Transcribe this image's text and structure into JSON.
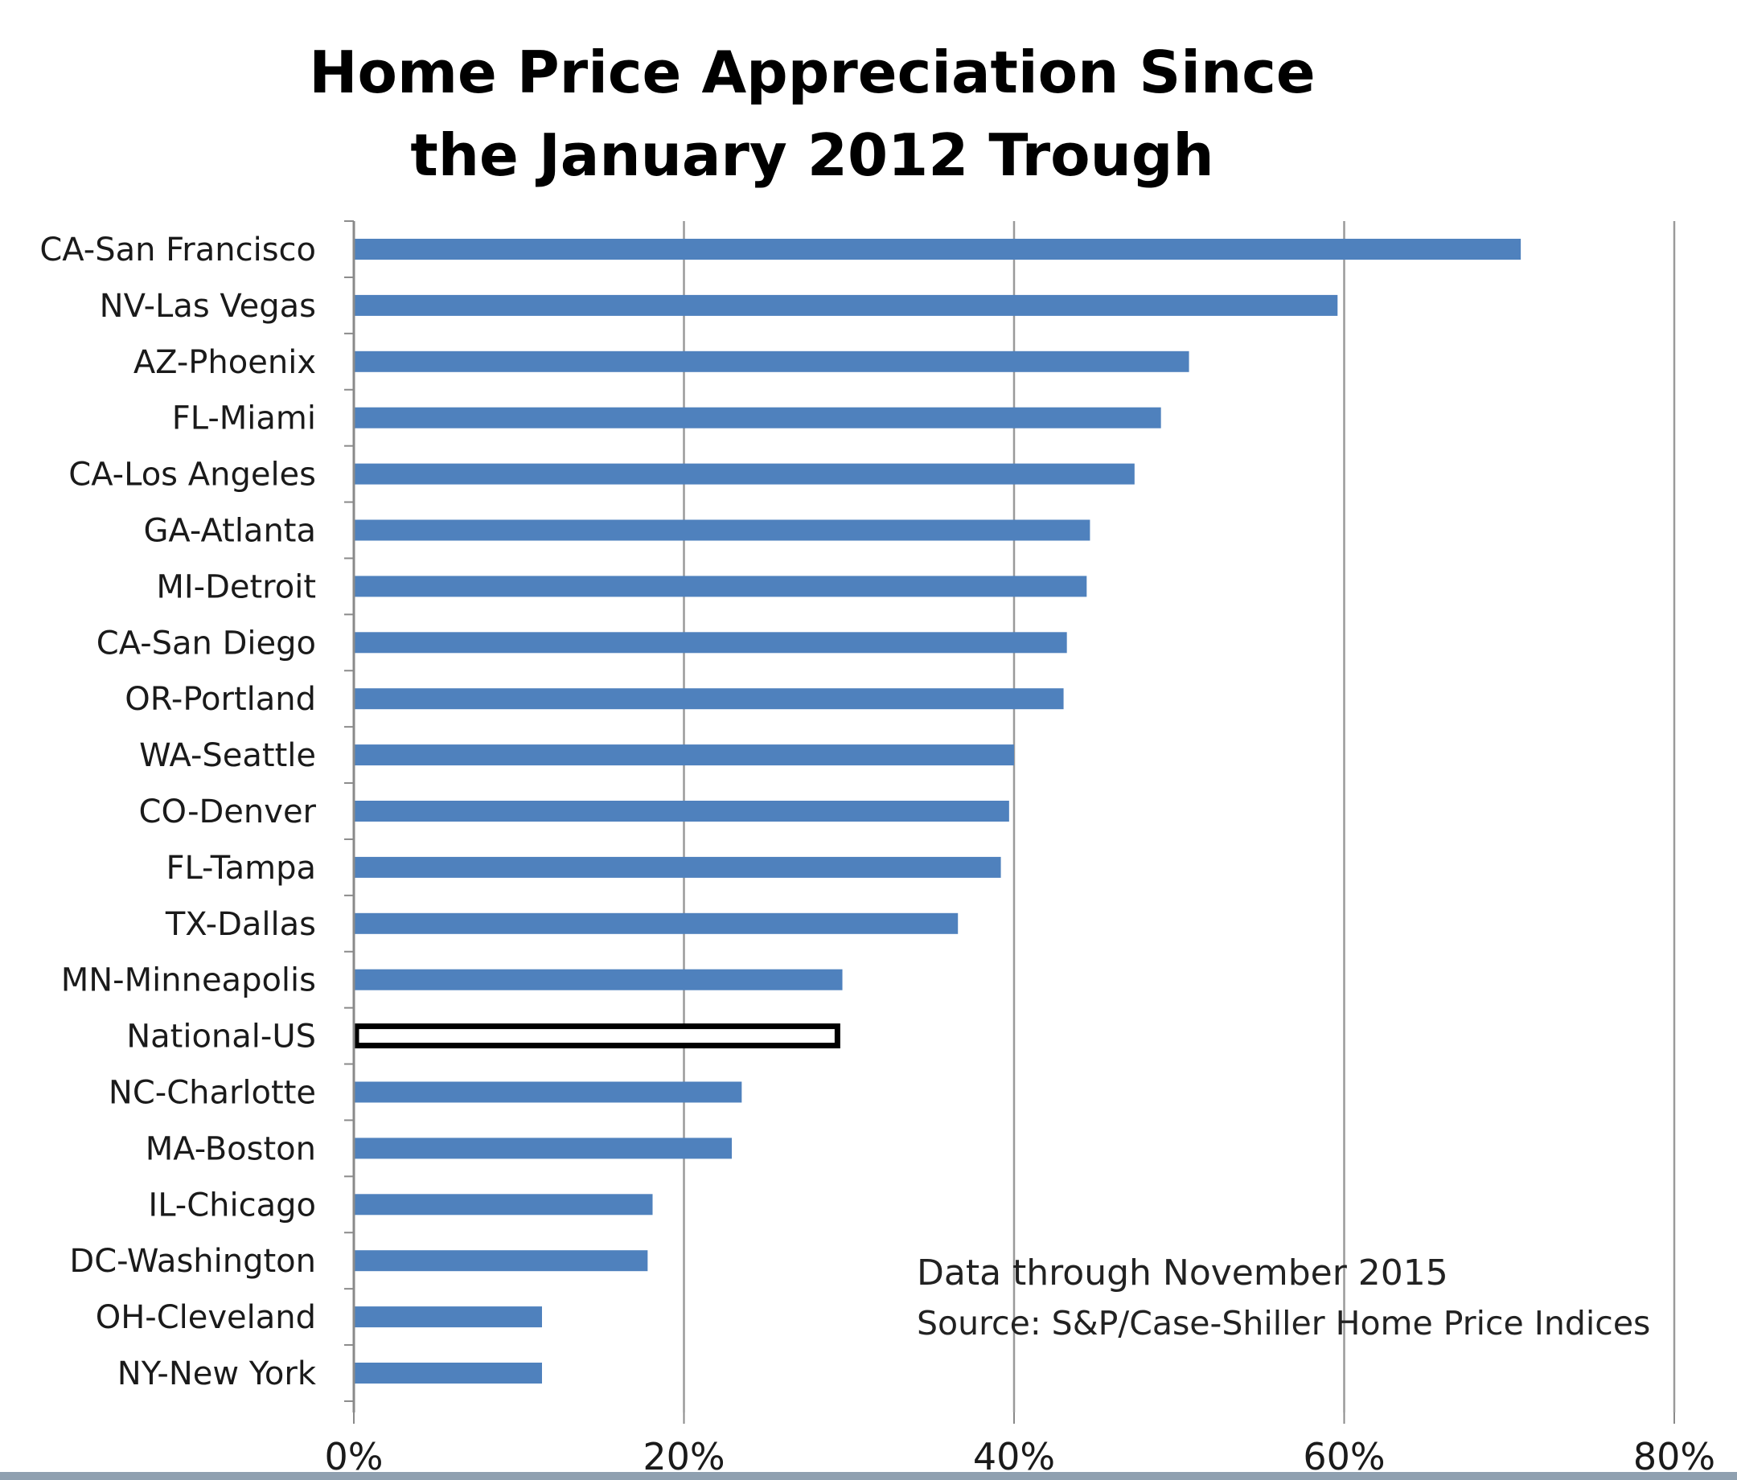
{
  "chart_data": {
    "type": "bar",
    "orientation": "horizontal",
    "title": "Home Price Appreciation Since the January 2012 Trough",
    "title_lines": [
      "Home Price Appreciation Since",
      "the January 2012 Trough"
    ],
    "categories": [
      "CA-San Francisco",
      "NV-Las Vegas",
      "AZ-Phoenix",
      "FL-Miami",
      "CA-Los Angeles",
      "GA-Atlanta",
      "MI-Detroit",
      "CA-San Diego",
      "OR-Portland",
      "WA-Seattle",
      "CO-Denver",
      "FL-Tampa",
      "TX-Dallas",
      "MN-Minneapolis",
      "National-US",
      "NC-Charlotte",
      "MA-Boston",
      "IL-Chicago",
      "DC-Washington",
      "OH-Cleveland",
      "NY-New York"
    ],
    "values": [
      70.7,
      59.6,
      50.6,
      48.9,
      47.3,
      44.6,
      44.4,
      43.2,
      43.0,
      40.0,
      39.7,
      39.2,
      36.6,
      29.6,
      29.3,
      23.5,
      22.9,
      18.1,
      17.8,
      11.4,
      11.4
    ],
    "highlight_category": "National-US",
    "xlim": [
      0,
      80
    ],
    "xticks": [
      0,
      20,
      40,
      60,
      80
    ],
    "xtick_labels": [
      "0%",
      "20%",
      "40%",
      "60%",
      "80%"
    ],
    "grid": "vertical",
    "xlabel": "",
    "ylabel": "",
    "annotations": [
      "Data through November  2015",
      "Source: S&P/Case-Shiller Home Price Indices"
    ],
    "colors": {
      "bar": "#4f81bd",
      "highlight_fill": "#ffffff",
      "highlight_stroke": "#000000",
      "grid": "#9a9a9a"
    }
  }
}
